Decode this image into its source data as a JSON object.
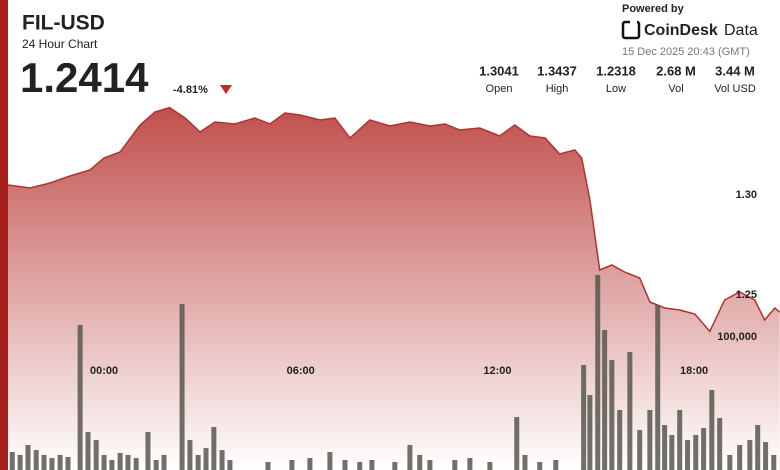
{
  "header": {
    "title": "FIL-USD",
    "subtitle": "24 Hour Chart",
    "price": "1.2414",
    "change": "-4.81%",
    "powered": "Powered by",
    "brand": "CoinDesk",
    "brand_suffix": "Data",
    "timestamp": "15 Dec 2025 20:43 (GMT)"
  },
  "stats": [
    {
      "value": "1.3041",
      "label": "Open"
    },
    {
      "value": "1.3437",
      "label": "High"
    },
    {
      "value": "1.2318",
      "label": "Low"
    },
    {
      "value": "2.68 M",
      "label": "Vol"
    },
    {
      "value": "3.44 M",
      "label": "Vol USD"
    }
  ],
  "chart_data": {
    "type": "area",
    "xlim": [
      -2.93,
      20.62
    ],
    "ylim": [
      1.1625,
      1.3475
    ],
    "y2lim": [
      0,
      278000
    ],
    "xticks": [
      {
        "value": 0,
        "label": "00:00"
      },
      {
        "value": 6,
        "label": "06:00"
      },
      {
        "value": 12,
        "label": "12:00"
      },
      {
        "value": 18,
        "label": "18:00"
      }
    ],
    "yticks": [
      1.25,
      {
        "value": 1.3,
        "label": "1.30"
      }
    ],
    "y2ticks": [
      {
        "value": 100000,
        "label": "100,000"
      }
    ],
    "series": [
      {
        "type": "area",
        "color": "#b3312e",
        "x": [
          -2.93,
          -2.26,
          -1.65,
          -1.04,
          -0.43,
          0,
          0.49,
          1.1,
          1.55,
          2.0,
          2.47,
          2.93,
          3.38,
          3.99,
          4.6,
          5.06,
          5.52,
          5.98,
          6.59,
          7.04,
          7.5,
          8.11,
          8.72,
          9.33,
          9.94,
          10.4,
          10.85,
          11.46,
          12.07,
          12.53,
          12.99,
          13.45,
          13.9,
          14.36,
          14.57,
          14.82,
          15.12,
          15.49,
          15.88,
          16.34,
          16.65,
          17.1,
          17.56,
          18.02,
          18.48,
          18.93,
          19.39,
          19.85,
          20.15,
          20.46,
          20.61
        ],
        "values": [
          1.305,
          1.3035,
          1.306,
          1.3095,
          1.3125,
          1.3185,
          1.3215,
          1.335,
          1.3415,
          1.3437,
          1.3385,
          1.3315,
          1.3365,
          1.3355,
          1.3385,
          1.3355,
          1.341,
          1.34,
          1.3375,
          1.3385,
          1.3285,
          1.3375,
          1.3345,
          1.3365,
          1.3345,
          1.3355,
          1.3325,
          1.3335,
          1.3295,
          1.335,
          1.3295,
          1.3285,
          1.3205,
          1.3225,
          1.3185,
          1.2975,
          1.2625,
          1.265,
          1.2615,
          1.2585,
          1.2465,
          1.2435,
          1.2425,
          1.2405,
          1.2318,
          1.2475,
          1.2515,
          1.2475,
          1.2375,
          1.2435,
          1.2414
        ]
      },
      {
        "type": "bar",
        "axis": "y2",
        "color": "#57574f",
        "x": [
          -2.8,
          -2.56,
          -2.32,
          -2.07,
          -1.83,
          -1.59,
          -1.34,
          -1.1,
          -0.73,
          -0.49,
          -0.24,
          0,
          0.24,
          0.49,
          0.73,
          0.98,
          1.34,
          1.59,
          1.83,
          2.38,
          2.62,
          2.87,
          3.11,
          3.35,
          3.6,
          3.84,
          5.0,
          5.73,
          6.28,
          6.89,
          7.35,
          7.8,
          8.17,
          8.87,
          9.33,
          9.63,
          9.94,
          10.7,
          11.16,
          11.77,
          12.59,
          12.84,
          13.29,
          13.78,
          14.63,
          14.82,
          15.06,
          15.27,
          15.49,
          15.73,
          16.04,
          16.34,
          16.65,
          16.89,
          17.1,
          17.32,
          17.56,
          17.8,
          18.05,
          18.29,
          18.54,
          18.78,
          19.09,
          19.39,
          19.7,
          19.94,
          20.18,
          20.43
        ],
        "values": [
          13500,
          11300,
          18800,
          15000,
          11300,
          9000,
          11300,
          9800,
          108900,
          28500,
          22500,
          11300,
          7500,
          12800,
          11300,
          9000,
          28500,
          7500,
          11300,
          124700,
          22500,
          11300,
          16500,
          32300,
          15000,
          7500,
          6000,
          7500,
          9000,
          13500,
          7500,
          6000,
          7500,
          6000,
          18800,
          11300,
          7500,
          7500,
          9000,
          6000,
          39800,
          11300,
          6000,
          7500,
          78900,
          56300,
          146500,
          105200,
          82600,
          45100,
          88600,
          30000,
          45100,
          123900,
          33800,
          26300,
          45100,
          22500,
          26300,
          31500,
          60100,
          39100,
          11300,
          18800,
          22500,
          33800,
          21000,
          11300
        ]
      }
    ]
  }
}
